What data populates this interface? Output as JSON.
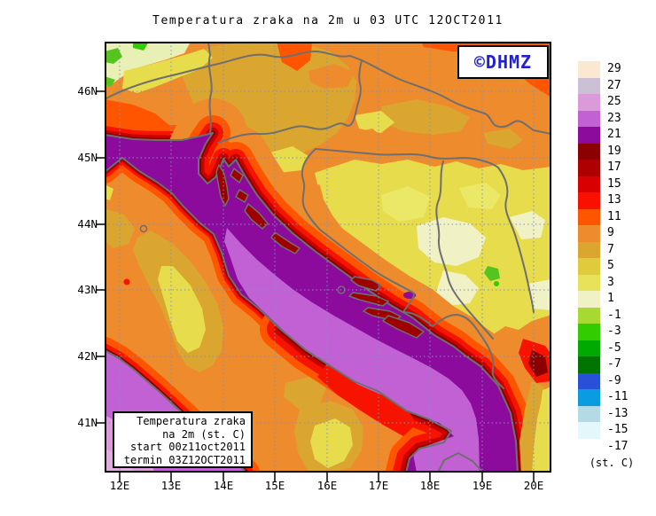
{
  "title": "Temperatura zraka na 2m u 03 UTC 12OCT2011",
  "logo": {
    "text": "©DHMZ",
    "color": "#2121CE"
  },
  "info_box": {
    "lines": [
      "Temperatura zraka",
      "na 2m (st. C)",
      "start 00z11oct2011",
      "termin 03Z12OCT2011"
    ]
  },
  "axes": {
    "lat_labels": [
      "46N",
      "45N",
      "44N",
      "43N",
      "42N",
      "41N"
    ],
    "lon_labels": [
      "12E",
      "13E",
      "14E",
      "15E",
      "16E",
      "17E",
      "18E",
      "19E",
      "20E"
    ]
  },
  "legend": {
    "unit_label": "(st. C)",
    "entries": [
      {
        "label": "29",
        "color": "#FAE8D2"
      },
      {
        "label": "27",
        "color": "#CBC0D5"
      },
      {
        "label": "25",
        "color": "#DB9ADA"
      },
      {
        "label": "23",
        "color": "#C161D4"
      },
      {
        "label": "21",
        "color": "#8C0A9C"
      },
      {
        "label": "19",
        "color": "#8B0000"
      },
      {
        "label": "17",
        "color": "#AE0000"
      },
      {
        "label": "15",
        "color": "#D80000"
      },
      {
        "label": "13",
        "color": "#FA1000"
      },
      {
        "label": "11",
        "color": "#FF5500"
      },
      {
        "label": "9",
        "color": "#EE8B2C"
      },
      {
        "label": "7",
        "color": "#DBA630"
      },
      {
        "label": "5",
        "color": "#DFCB3C"
      },
      {
        "label": "3",
        "color": "#E8E15A"
      },
      {
        "label": "1",
        "color": "#F0F2C6"
      },
      {
        "label": "-1",
        "color": "#A8D832"
      },
      {
        "label": "-3",
        "color": "#33CC00"
      },
      {
        "label": "-5",
        "color": "#00AA00"
      },
      {
        "label": "-7",
        "color": "#007400"
      },
      {
        "label": "-9",
        "color": "#2850D8"
      },
      {
        "label": "-11",
        "color": "#0A9CE0"
      },
      {
        "label": "-13",
        "color": "#B4DAE6"
      },
      {
        "label": "-15",
        "color": "#E4F8FC"
      },
      {
        "label": "-17",
        "color": "#FFFFFF"
      }
    ]
  }
}
